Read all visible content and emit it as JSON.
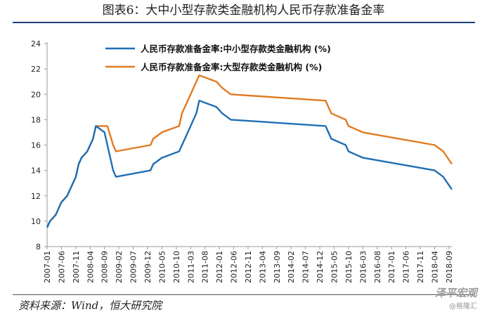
{
  "header": {
    "title": "图表6：大中小型存款类金融机构人民币存款准备金率"
  },
  "footer": {
    "source": "资料来源：Wind，恒大研究院"
  },
  "watermark": {
    "main": "泽平宏观",
    "sub": "@格隆汇"
  },
  "colors": {
    "small_medium": "#1f6fb5",
    "large": "#e07b22",
    "axis": "#999999",
    "title_rule": "#1f3f7a"
  },
  "chart_data": {
    "type": "line",
    "ylim": [
      8,
      24
    ],
    "yticks": [
      8,
      10,
      12,
      14,
      16,
      18,
      20,
      22,
      24
    ],
    "grid": false,
    "legend_position": "top-center",
    "x_tick_labels": [
      "2007-01",
      "2007-06",
      "2007-11",
      "2008-04",
      "2008-09",
      "2009-02",
      "2009-07",
      "2009-12",
      "2010-05",
      "2010-10",
      "2011-03",
      "2011-08",
      "2012-01",
      "2012-06",
      "2012-11",
      "2013-04",
      "2013-09",
      "2014-02",
      "2014-07",
      "2014-12",
      "2015-05",
      "2015-10",
      "2016-03",
      "2016-08",
      "2017-01",
      "2017-06",
      "2017-11",
      "2018-04",
      "2018-09"
    ],
    "series": [
      {
        "name": "人民币存款准备金率:大型存款类金融机构 (%)",
        "color_key": "large",
        "points": [
          [
            "2007-01",
            9.5
          ],
          [
            "2007-02",
            10.0
          ],
          [
            "2007-04",
            10.5
          ],
          [
            "2007-05",
            11.0
          ],
          [
            "2007-06",
            11.5
          ],
          [
            "2007-08",
            12.0
          ],
          [
            "2007-09",
            12.5
          ],
          [
            "2007-10",
            13.0
          ],
          [
            "2007-11",
            13.5
          ],
          [
            "2007-12",
            14.5
          ],
          [
            "2008-01",
            15.0
          ],
          [
            "2008-03",
            15.5
          ],
          [
            "2008-04",
            16.0
          ],
          [
            "2008-05",
            16.5
          ],
          [
            "2008-06",
            17.5
          ],
          [
            "2008-10",
            17.5
          ],
          [
            "2008-12",
            16.0
          ],
          [
            "2009-01",
            15.5
          ],
          [
            "2010-01",
            16.0
          ],
          [
            "2010-02",
            16.5
          ],
          [
            "2010-05",
            17.0
          ],
          [
            "2010-11",
            17.5
          ],
          [
            "2010-12",
            18.5
          ],
          [
            "2011-01",
            19.0
          ],
          [
            "2011-02",
            19.5
          ],
          [
            "2011-03",
            20.0
          ],
          [
            "2011-04",
            20.5
          ],
          [
            "2011-05",
            21.0
          ],
          [
            "2011-06",
            21.5
          ],
          [
            "2011-12",
            21.0
          ],
          [
            "2012-02",
            20.5
          ],
          [
            "2012-05",
            20.0
          ],
          [
            "2015-02",
            19.5
          ],
          [
            "2015-04",
            18.5
          ],
          [
            "2015-09",
            18.0
          ],
          [
            "2015-10",
            17.5
          ],
          [
            "2016-03",
            17.0
          ],
          [
            "2018-04",
            16.0
          ],
          [
            "2018-07",
            15.5
          ],
          [
            "2018-10",
            14.5
          ]
        ]
      },
      {
        "name": "人民币存款准备金率:中小型存款类金融机构 (%)",
        "color_key": "small_medium",
        "points": [
          [
            "2007-01",
            9.5
          ],
          [
            "2007-02",
            10.0
          ],
          [
            "2007-04",
            10.5
          ],
          [
            "2007-05",
            11.0
          ],
          [
            "2007-06",
            11.5
          ],
          [
            "2007-08",
            12.0
          ],
          [
            "2007-09",
            12.5
          ],
          [
            "2007-10",
            13.0
          ],
          [
            "2007-11",
            13.5
          ],
          [
            "2007-12",
            14.5
          ],
          [
            "2008-01",
            15.0
          ],
          [
            "2008-03",
            15.5
          ],
          [
            "2008-04",
            16.0
          ],
          [
            "2008-05",
            16.5
          ],
          [
            "2008-06",
            17.5
          ],
          [
            "2008-09",
            17.0
          ],
          [
            "2008-10",
            16.0
          ],
          [
            "2008-12",
            14.0
          ],
          [
            "2009-01",
            13.5
          ],
          [
            "2010-01",
            14.0
          ],
          [
            "2010-02",
            14.5
          ],
          [
            "2010-05",
            15.0
          ],
          [
            "2010-11",
            15.5
          ],
          [
            "2010-12",
            16.0
          ],
          [
            "2011-01",
            16.5
          ],
          [
            "2011-02",
            17.0
          ],
          [
            "2011-03",
            17.5
          ],
          [
            "2011-04",
            18.0
          ],
          [
            "2011-05",
            18.5
          ],
          [
            "2011-06",
            19.5
          ],
          [
            "2011-12",
            19.0
          ],
          [
            "2012-02",
            18.5
          ],
          [
            "2012-05",
            18.0
          ],
          [
            "2015-02",
            17.5
          ],
          [
            "2015-04",
            16.5
          ],
          [
            "2015-09",
            16.0
          ],
          [
            "2015-10",
            15.5
          ],
          [
            "2016-03",
            15.0
          ],
          [
            "2018-04",
            14.0
          ],
          [
            "2018-07",
            13.5
          ],
          [
            "2018-10",
            12.5
          ]
        ]
      }
    ],
    "legend_order": [
      "small_medium",
      "large"
    ]
  }
}
